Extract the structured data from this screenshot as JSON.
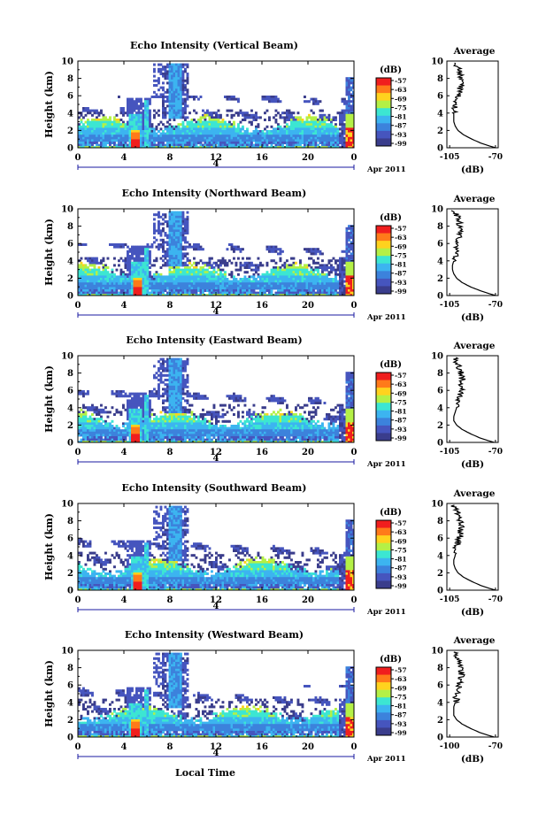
{
  "chart_data": [
    {
      "type": "heatmap",
      "title": "Echo Intensity (Vertical Beam)",
      "ylabel": "Height (km)",
      "xlim": [
        0,
        24
      ],
      "ylim": [
        0,
        10
      ],
      "x_ticks": [
        "0",
        "4",
        "8",
        "12",
        "16",
        "20",
        "0"
      ],
      "y_ticks": [
        "0",
        "2",
        "4",
        "6",
        "8",
        "10"
      ],
      "date_label": "4",
      "month_label": "Apr 2011",
      "colorbar": {
        "label": "(dB)",
        "ticks": [
          "-57",
          "-63",
          "-69",
          "-75",
          "-81",
          "-87",
          "-93",
          "-99"
        ]
      },
      "profile": {
        "title": "Average",
        "xlabel": "(dB)",
        "xlim": [
          -105,
          -68
        ],
        "xticks": [
          "-105",
          "-70"
        ],
        "heights": [
          0,
          0.5,
          1,
          1.5,
          2,
          2.5,
          3,
          3.5,
          4,
          4.5,
          5,
          5.5,
          6,
          6.5,
          7,
          7.5,
          8,
          8.5,
          9,
          9.5
        ],
        "values": [
          -70,
          -80,
          -87,
          -93,
          -97,
          -99,
          -100,
          -100,
          -100,
          -99,
          -99,
          -98,
          -97,
          -96,
          -95,
          -95,
          -95,
          -96,
          -96,
          -98
        ]
      }
    },
    {
      "type": "heatmap",
      "title": "Echo Intensity (Northward Beam)",
      "ylabel": "Height (km)",
      "xlim": [
        0,
        24
      ],
      "ylim": [
        0,
        10
      ],
      "x_ticks": [
        "0",
        "4",
        "8",
        "12",
        "16",
        "20",
        "0"
      ],
      "y_ticks": [
        "0",
        "2",
        "4",
        "6",
        "8",
        "10"
      ],
      "date_label": "4",
      "month_label": "Apr 2011",
      "colorbar": {
        "label": "(dB)",
        "ticks": [
          "-57",
          "-63",
          "-69",
          "-75",
          "-81",
          "-87",
          "-93",
          "-99"
        ]
      },
      "profile": {
        "title": "Average",
        "xlabel": "(dB)",
        "xlim": [
          -105,
          -68
        ],
        "xticks": [
          "-105",
          "-70"
        ],
        "heights": [
          0,
          0.5,
          1,
          1.5,
          2,
          2.5,
          3,
          3.5,
          4,
          4.5,
          5,
          5.5,
          6,
          6.5,
          7,
          7.5,
          8,
          8.5,
          9,
          9.5
        ],
        "values": [
          -70,
          -80,
          -88,
          -94,
          -98,
          -100,
          -101,
          -101,
          -100,
          -99,
          -99,
          -98,
          -97,
          -96,
          -95,
          -95,
          -96,
          -96,
          -97,
          -99
        ]
      }
    },
    {
      "type": "heatmap",
      "title": "Echo Intensity (Eastward Beam)",
      "ylabel": "Height (km)",
      "xlim": [
        0,
        24
      ],
      "ylim": [
        0,
        10
      ],
      "x_ticks": [
        "0",
        "4",
        "8",
        "12",
        "16",
        "20",
        "0"
      ],
      "y_ticks": [
        "0",
        "2",
        "4",
        "6",
        "8",
        "10"
      ],
      "date_label": "4",
      "month_label": "Apr 2011",
      "colorbar": {
        "label": "(dB)",
        "ticks": [
          "-57",
          "-63",
          "-69",
          "-75",
          "-81",
          "-87",
          "-93",
          "-99"
        ]
      },
      "profile": {
        "title": "Average",
        "xlabel": "(dB)",
        "xlim": [
          -105,
          -68
        ],
        "xticks": [
          "-105",
          "-70"
        ],
        "heights": [
          0,
          0.5,
          1,
          1.5,
          2,
          2.5,
          3,
          3.5,
          4,
          4.5,
          5,
          5.5,
          6,
          6.5,
          7,
          7.5,
          8,
          8.5,
          9,
          9.5
        ],
        "values": [
          -71,
          -81,
          -88,
          -94,
          -98,
          -100,
          -100,
          -99,
          -98,
          -98,
          -97,
          -96,
          -95,
          -94,
          -94,
          -94,
          -95,
          -96,
          -97,
          -98
        ]
      }
    },
    {
      "type": "heatmap",
      "title": "Echo Intensity (Southward Beam)",
      "ylabel": "Height (km)",
      "xlim": [
        0,
        24
      ],
      "ylim": [
        0,
        10
      ],
      "x_ticks": [
        "0",
        "4",
        "8",
        "12",
        "16",
        "20",
        "0"
      ],
      "y_ticks": [
        "0",
        "2",
        "4",
        "6",
        "8",
        "10"
      ],
      "date_label": "4",
      "month_label": "Apr 2011",
      "colorbar": {
        "label": "(dB)",
        "ticks": [
          "-57",
          "-63",
          "-69",
          "-75",
          "-81",
          "-87",
          "-93",
          "-99"
        ]
      },
      "profile": {
        "title": "Average",
        "xlabel": "(dB)",
        "xlim": [
          -105,
          -68
        ],
        "xticks": [
          "-105",
          "-70"
        ],
        "heights": [
          0,
          0.5,
          1,
          1.5,
          2,
          2.5,
          3,
          3.5,
          4,
          4.5,
          5,
          5.5,
          6,
          6.5,
          7,
          7.5,
          8,
          8.5,
          9,
          9.5
        ],
        "values": [
          -70,
          -80,
          -87,
          -93,
          -97,
          -99,
          -100,
          -100,
          -99,
          -98,
          -98,
          -97,
          -96,
          -95,
          -95,
          -95,
          -96,
          -97,
          -97,
          -99
        ]
      }
    },
    {
      "type": "heatmap",
      "title": "Echo Intensity (Westward Beam)",
      "ylabel": "Height (km)",
      "xlabel": "Local Time",
      "xlim": [
        0,
        24
      ],
      "ylim": [
        0,
        10
      ],
      "x_ticks": [
        "0",
        "4",
        "8",
        "12",
        "16",
        "20",
        "0"
      ],
      "y_ticks": [
        "0",
        "2",
        "4",
        "6",
        "8",
        "10"
      ],
      "date_label": "4",
      "month_label": "Apr 2011",
      "colorbar": {
        "label": "(dB)",
        "ticks": [
          "-57",
          "-63",
          "-69",
          "-75",
          "-81",
          "-87",
          "-93",
          "-99"
        ]
      },
      "profile": {
        "title": "Average",
        "xlabel": "(dB)",
        "xlim": [
          -105,
          -68
        ],
        "xticks": [
          "-100",
          "-70"
        ],
        "heights": [
          0,
          0.5,
          1,
          1.5,
          2,
          2.5,
          3,
          3.5,
          4,
          4.5,
          5,
          5.5,
          6,
          6.5,
          7,
          7.5,
          8,
          8.5,
          9,
          9.5
        ],
        "values": [
          -71,
          -81,
          -88,
          -94,
          -98,
          -100,
          -100,
          -100,
          -99,
          -98,
          -98,
          -97,
          -96,
          -95,
          -94,
          -94,
          -95,
          -96,
          -97,
          -98
        ]
      }
    }
  ],
  "colorscale": [
    "#f01e1e",
    "#ff7a1a",
    "#ffd21e",
    "#b4f046",
    "#3ce6d2",
    "#3cb4f0",
    "#3c82dc",
    "#4655be",
    "#3a3d8c"
  ]
}
